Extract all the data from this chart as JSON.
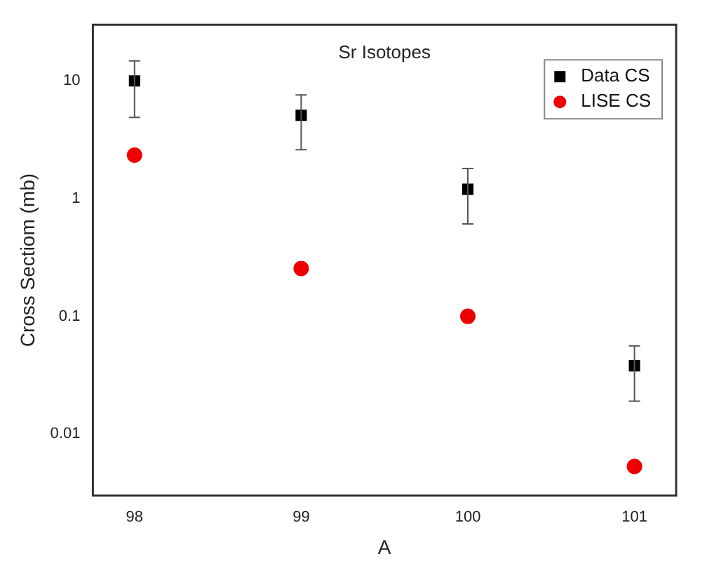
{
  "chart_data": {
    "type": "scatter",
    "title": "Sr Isotopes",
    "xlabel": "A",
    "ylabel": "Cross Sectiom (mb)",
    "log": "y",
    "xlim": [
      97.75,
      101.25
    ],
    "xticks": [
      98,
      99,
      100,
      101
    ],
    "ylim": [
      0.003,
      30
    ],
    "yticks": [
      0.01,
      0.1,
      1,
      10
    ],
    "grid": false,
    "legend": "top right",
    "series": [
      {
        "name": "Data CS",
        "color": "#000000",
        "marker": "square",
        "x": [
          98,
          99,
          100,
          101
        ],
        "values": [
          10,
          5.1,
          1.2,
          0.038
        ],
        "errors": [
          [
            4.9,
            14.8
          ],
          [
            2.6,
            7.6
          ],
          [
            0.61,
            1.8
          ],
          [
            0.019,
            0.056
          ]
        ]
      },
      {
        "name": "LISE CS",
        "color": "#ee0000",
        "marker": "circle",
        "x": [
          98,
          99,
          100,
          101
        ],
        "values": [
          2.34,
          0.255,
          0.1,
          0.0053
        ]
      }
    ]
  }
}
